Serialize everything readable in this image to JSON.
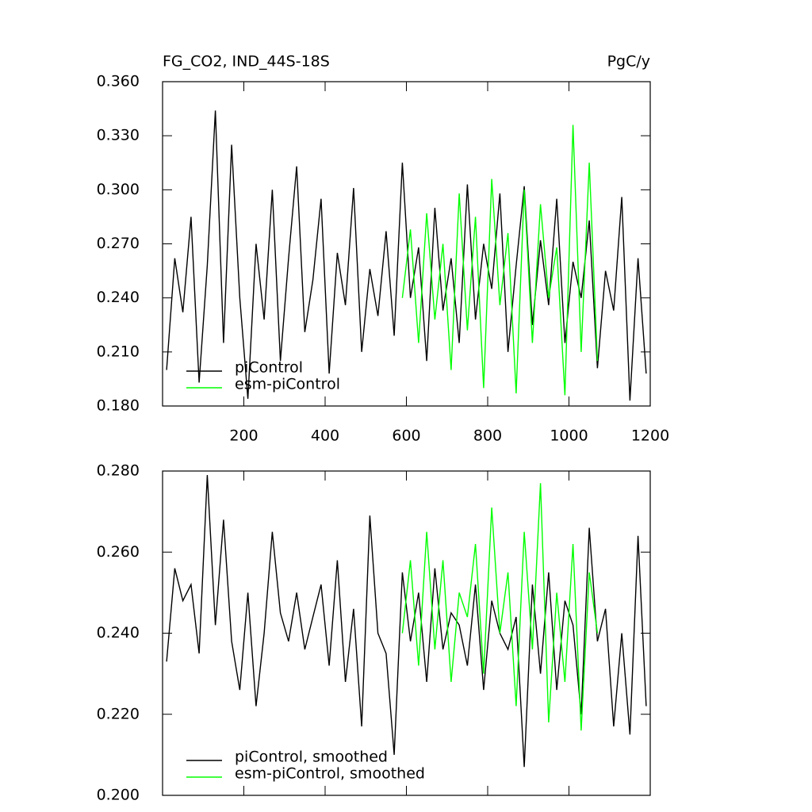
{
  "chart_data": [
    {
      "type": "line",
      "title": "FG_CO2, IND_44S-18S",
      "units": "PgC/y",
      "xlim": [
        0,
        1200
      ],
      "xticks": [
        200,
        400,
        600,
        800,
        1000,
        1200
      ],
      "ylim": [
        0.18,
        0.36
      ],
      "yticks": [
        {
          "value": 0.18,
          "label": "0.180"
        },
        {
          "value": 0.21,
          "label": "0.210"
        },
        {
          "value": 0.24,
          "label": "0.240"
        },
        {
          "value": 0.27,
          "label": "0.270"
        },
        {
          "value": 0.3,
          "label": "0.300"
        },
        {
          "value": 0.33,
          "label": "0.330"
        },
        {
          "value": 0.36,
          "label": "0.360"
        }
      ],
      "legend": "lower-left",
      "series": [
        {
          "name": "piControl",
          "color": "#000000",
          "x": [
            10,
            30,
            50,
            70,
            90,
            110,
            130,
            150,
            170,
            190,
            210,
            230,
            250,
            270,
            290,
            310,
            330,
            350,
            370,
            390,
            410,
            430,
            450,
            470,
            490,
            510,
            530,
            550,
            570,
            590,
            610,
            630,
            650,
            670,
            690,
            710,
            730,
            750,
            770,
            790,
            810,
            830,
            850,
            870,
            890,
            910,
            930,
            950,
            970,
            990,
            1010,
            1030,
            1050,
            1070,
            1090,
            1110,
            1130,
            1150,
            1170,
            1190
          ],
          "values": [
            0.2,
            0.262,
            0.232,
            0.285,
            0.193,
            0.258,
            0.344,
            0.215,
            0.325,
            0.24,
            0.184,
            0.27,
            0.228,
            0.3,
            0.205,
            0.262,
            0.313,
            0.221,
            0.25,
            0.295,
            0.198,
            0.265,
            0.236,
            0.301,
            0.21,
            0.256,
            0.23,
            0.277,
            0.219,
            0.315,
            0.24,
            0.268,
            0.205,
            0.29,
            0.233,
            0.262,
            0.215,
            0.303,
            0.228,
            0.27,
            0.245,
            0.298,
            0.21,
            0.258,
            0.302,
            0.225,
            0.272,
            0.236,
            0.295,
            0.215,
            0.26,
            0.24,
            0.283,
            0.201,
            0.255,
            0.233,
            0.296,
            0.183,
            0.262,
            0.198
          ]
        },
        {
          "name": "esm-piControl",
          "color": "#00ff00",
          "x": [
            590,
            610,
            630,
            650,
            670,
            690,
            710,
            730,
            750,
            770,
            790,
            810,
            830,
            850,
            870,
            890,
            910,
            930,
            950,
            970,
            990,
            1010,
            1030,
            1050,
            1070
          ],
          "values": [
            0.24,
            0.278,
            0.215,
            0.287,
            0.228,
            0.27,
            0.2,
            0.298,
            0.222,
            0.285,
            0.19,
            0.306,
            0.236,
            0.276,
            0.187,
            0.3,
            0.215,
            0.292,
            0.24,
            0.268,
            0.186,
            0.336,
            0.21,
            0.315,
            0.205
          ]
        }
      ]
    },
    {
      "type": "line",
      "xlim": [
        0,
        1200
      ],
      "ylim": [
        0.2,
        0.28
      ],
      "yticks": [
        {
          "value": 0.2,
          "label": "0.200"
        },
        {
          "value": 0.22,
          "label": "0.220"
        },
        {
          "value": 0.24,
          "label": "0.240"
        },
        {
          "value": 0.26,
          "label": "0.260"
        },
        {
          "value": 0.28,
          "label": "0.280"
        }
      ],
      "legend": "lower-left",
      "series": [
        {
          "name": "piControl, smoothed",
          "color": "#000000",
          "x": [
            10,
            30,
            50,
            70,
            90,
            110,
            130,
            150,
            170,
            190,
            210,
            230,
            250,
            270,
            290,
            310,
            330,
            350,
            370,
            390,
            410,
            430,
            450,
            470,
            490,
            510,
            530,
            550,
            570,
            590,
            610,
            630,
            650,
            670,
            690,
            710,
            730,
            750,
            770,
            790,
            810,
            830,
            850,
            870,
            890,
            910,
            930,
            950,
            970,
            990,
            1010,
            1030,
            1050,
            1070,
            1090,
            1110,
            1130,
            1150,
            1170,
            1190
          ],
          "values": [
            0.233,
            0.256,
            0.248,
            0.252,
            0.235,
            0.279,
            0.242,
            0.268,
            0.238,
            0.226,
            0.25,
            0.222,
            0.24,
            0.265,
            0.245,
            0.238,
            0.25,
            0.236,
            0.244,
            0.252,
            0.232,
            0.258,
            0.228,
            0.246,
            0.217,
            0.269,
            0.24,
            0.235,
            0.21,
            0.255,
            0.238,
            0.25,
            0.228,
            0.256,
            0.236,
            0.245,
            0.242,
            0.232,
            0.252,
            0.226,
            0.248,
            0.24,
            0.236,
            0.244,
            0.207,
            0.252,
            0.23,
            0.255,
            0.226,
            0.248,
            0.242,
            0.22,
            0.266,
            0.238,
            0.246,
            0.217,
            0.24,
            0.215,
            0.264,
            0.222
          ]
        },
        {
          "name": "esm-piControl, smoothed",
          "color": "#00ff00",
          "x": [
            590,
            610,
            630,
            650,
            670,
            690,
            710,
            730,
            750,
            770,
            790,
            810,
            830,
            850,
            870,
            890,
            910,
            930,
            950,
            970,
            990,
            1010,
            1030,
            1050,
            1070
          ],
          "values": [
            0.24,
            0.258,
            0.232,
            0.265,
            0.236,
            0.258,
            0.228,
            0.25,
            0.244,
            0.262,
            0.23,
            0.271,
            0.24,
            0.255,
            0.222,
            0.265,
            0.236,
            0.277,
            0.218,
            0.25,
            0.228,
            0.262,
            0.216,
            0.255,
            0.24
          ]
        }
      ]
    }
  ]
}
